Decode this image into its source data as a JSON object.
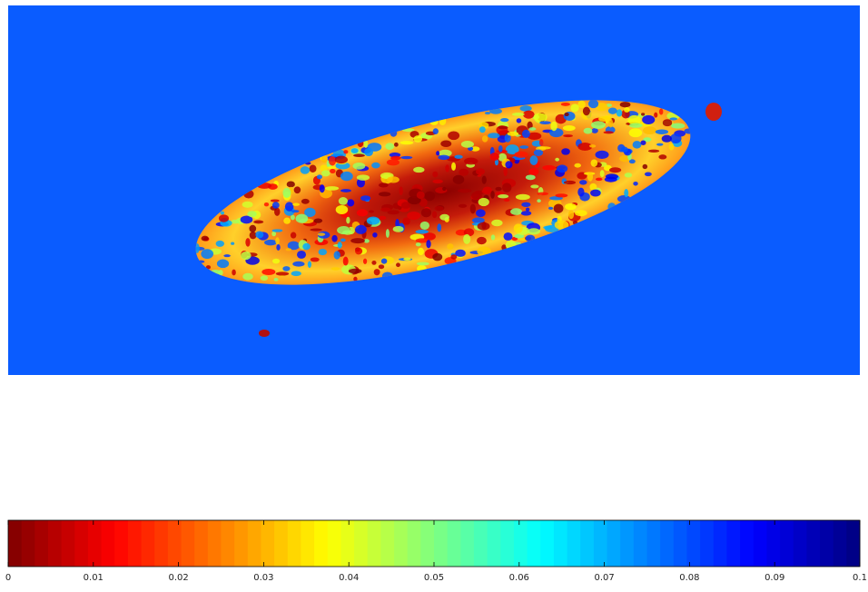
{
  "chart_data": {
    "type": "colorbar",
    "clim": [
      0,
      0.1
    ],
    "ticks": [
      0,
      0.01,
      0.02,
      0.03,
      0.04,
      0.05,
      0.06,
      0.07,
      0.08,
      0.09,
      0.1
    ],
    "colormap": "jet",
    "reversed": true,
    "levels": 64
  }
}
